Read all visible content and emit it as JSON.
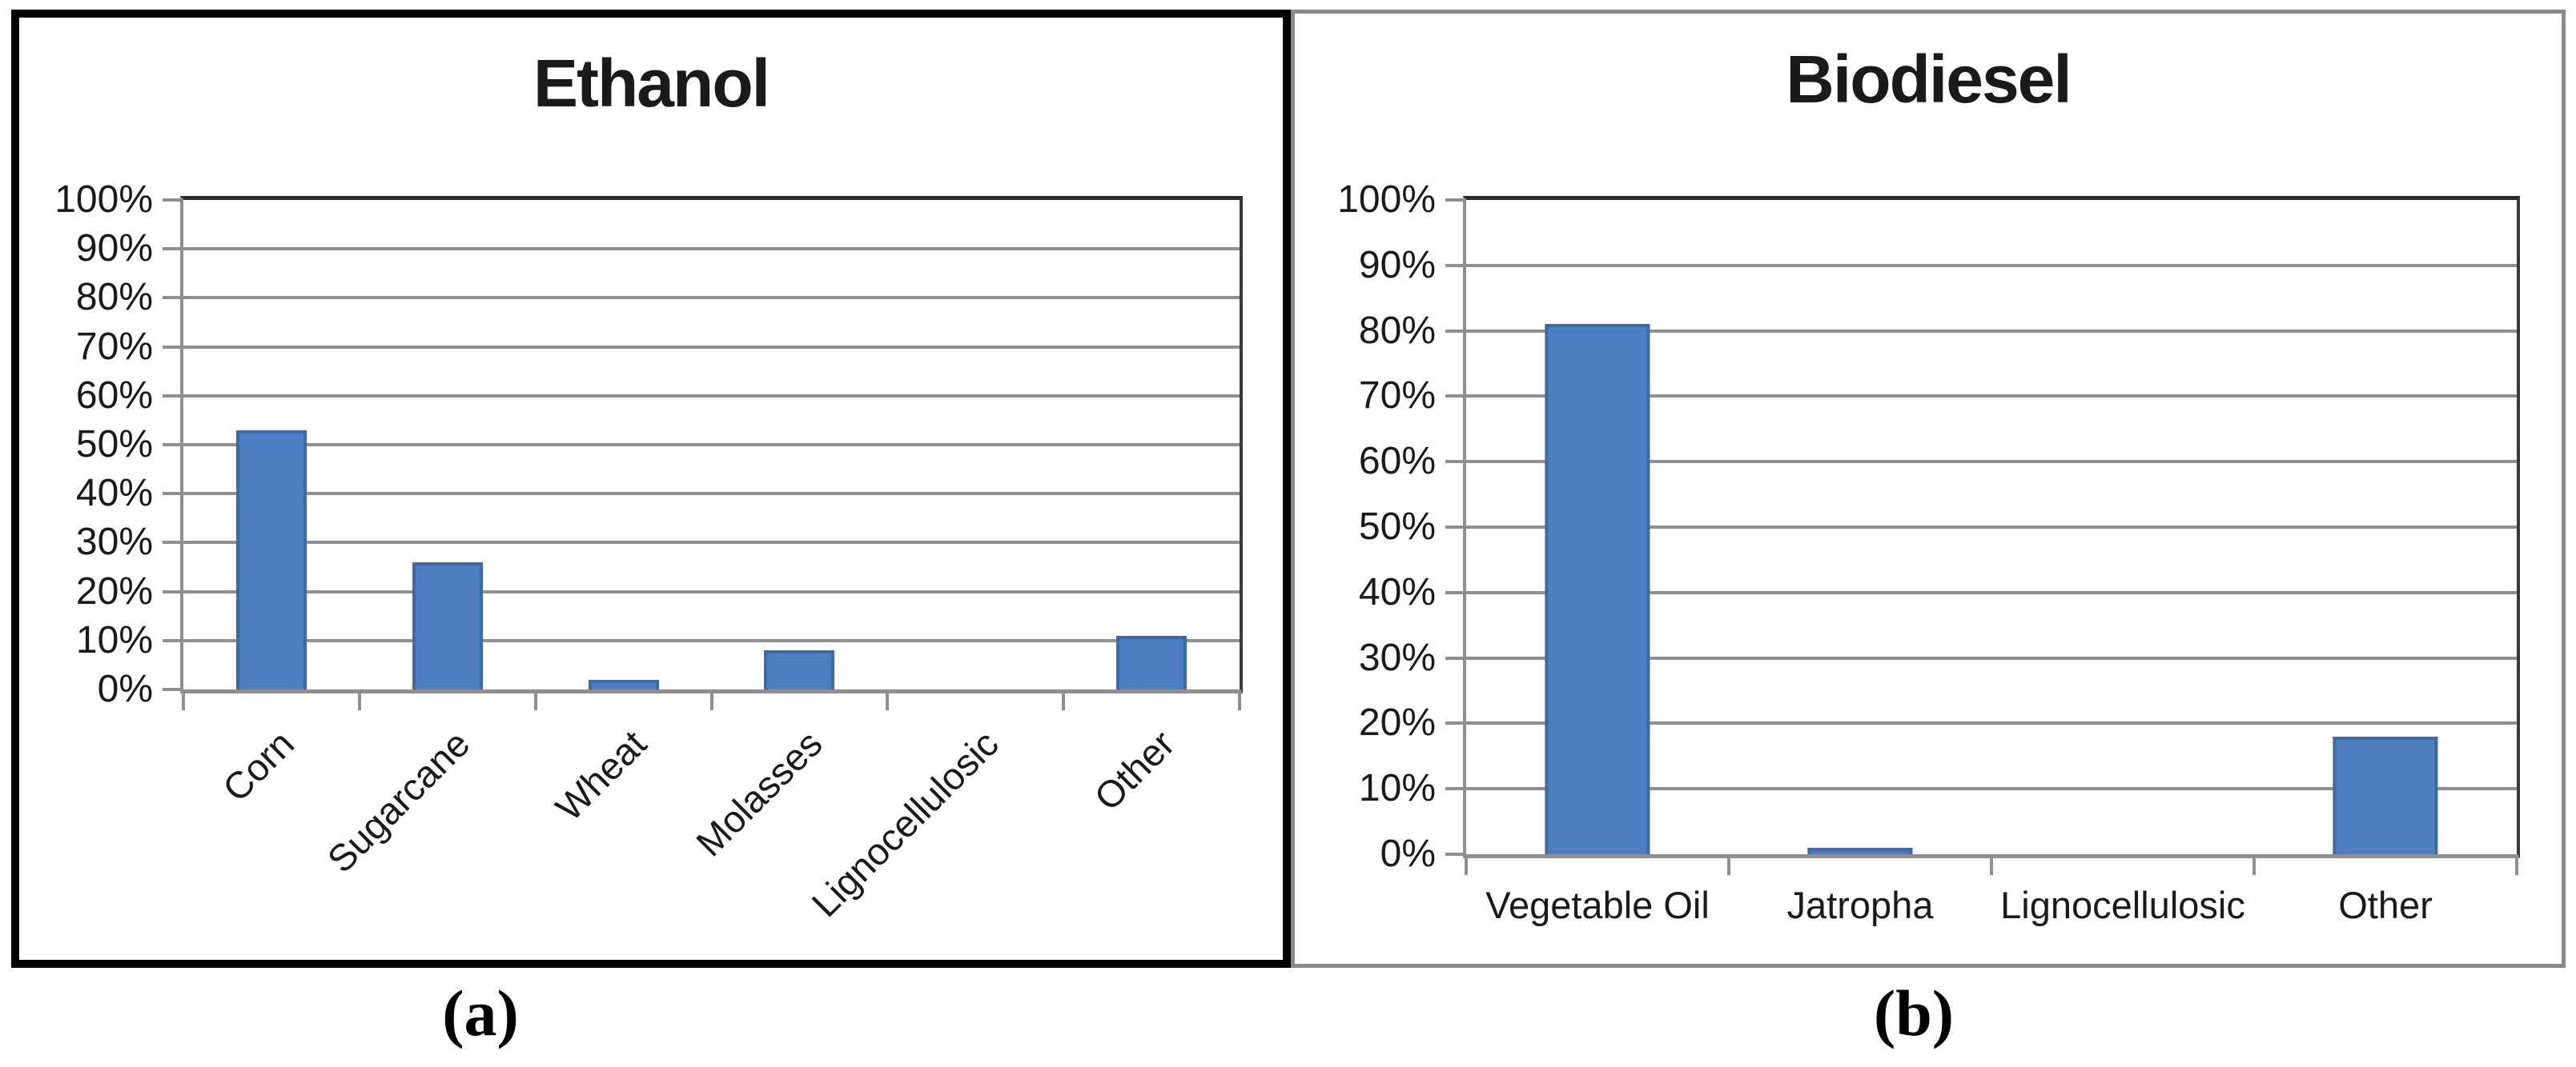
{
  "figure_captions": {
    "a": "(a)",
    "b": "(b)"
  },
  "chart_data": [
    {
      "type": "bar",
      "title": "Ethanol",
      "panel_caption": "(a)",
      "categories": [
        "Corn",
        "Sugarcane",
        "Wheat",
        "Molasses",
        "Lignocellulosic",
        "Other"
      ],
      "values": [
        53,
        26,
        2,
        8,
        0,
        11
      ],
      "value_unit": "percent",
      "ylim": [
        0,
        100
      ],
      "ytick_step": 10,
      "ytick_labels": [
        "100%",
        "90%",
        "80%",
        "70%",
        "60%",
        "50%",
        "40%",
        "30%",
        "20%",
        "10%",
        "0%"
      ],
      "xlabel": "",
      "ylabel": "",
      "grid": true,
      "legend_position": "none",
      "xtick_label_rotation_deg": -45
    },
    {
      "type": "bar",
      "title": "Biodiesel",
      "panel_caption": "(b)",
      "categories": [
        "Vegetable Oil",
        "Jatropha",
        "Lignocellulosic",
        "Other"
      ],
      "values": [
        81,
        1,
        0,
        18
      ],
      "value_unit": "percent",
      "ylim": [
        0,
        100
      ],
      "ytick_step": 10,
      "ytick_labels": [
        "100%",
        "90%",
        "80%",
        "70%",
        "60%",
        "50%",
        "40%",
        "30%",
        "20%",
        "10%",
        "0%"
      ],
      "xlabel": "",
      "ylabel": "",
      "grid": true,
      "legend_position": "none",
      "xtick_label_rotation_deg": 0
    }
  ],
  "style": {
    "background": "#ffffff",
    "text_color": "#1a1a1a",
    "bar_fill": "#4d7ebf",
    "bar_border": "#3b6aa6",
    "gridline_color": "#8f8f8f",
    "axis_color": "#8f8f8f",
    "plot_top_border_color": "#2a2a2a",
    "plot_right_border_color": "#3a3a3a",
    "panel_a_border_color": "#000000",
    "panel_b_border_color": "#8a8a8a"
  }
}
